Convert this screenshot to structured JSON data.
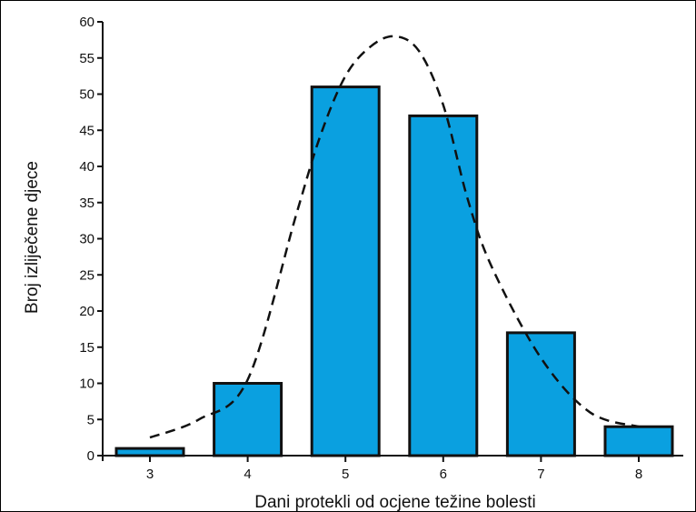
{
  "chart_data": {
    "type": "bar",
    "xlabel": "Dani protekli od ocjene težine bolesti",
    "ylabel": "Broj izliječene djece",
    "categories": [
      "3",
      "4",
      "5",
      "6",
      "7",
      "8"
    ],
    "values": [
      1,
      10,
      51,
      47,
      17,
      4
    ],
    "ylim": [
      0,
      60
    ],
    "yticks": [
      0,
      5,
      10,
      15,
      20,
      25,
      30,
      35,
      40,
      45,
      50,
      55,
      60
    ],
    "grid": false,
    "legend": "none",
    "overlay": {
      "type": "line",
      "style": "dashed",
      "x": [
        3.0,
        3.5,
        4.0,
        4.5,
        4.75,
        5.0,
        5.25,
        5.5,
        5.75,
        6.0,
        6.25,
        6.5,
        7.0,
        7.5,
        8.0
      ],
      "values": [
        2.5,
        5.0,
        10.5,
        33.5,
        44.5,
        52.5,
        56.5,
        58.0,
        56.0,
        48.5,
        35.5,
        26.0,
        13.5,
        6.0,
        4.0
      ]
    },
    "colors": {
      "bar_fill": "#0aa0e0",
      "bar_stroke": "#111111",
      "curve": "#111111",
      "axis": "#111111"
    }
  }
}
